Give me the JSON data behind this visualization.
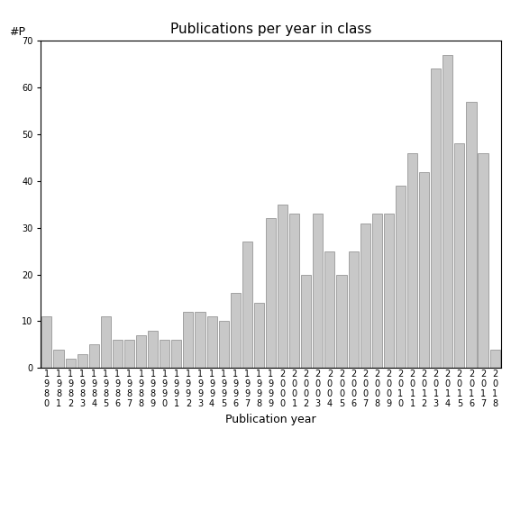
{
  "title": "Publications per year in class",
  "xlabel": "Publication year",
  "ylabel": "#P",
  "ylim": [
    0,
    70
  ],
  "yticks": [
    0,
    10,
    20,
    30,
    40,
    50,
    60,
    70
  ],
  "years": [
    "1980",
    "1981",
    "1982",
    "1983",
    "1984",
    "1985",
    "1986",
    "1987",
    "1988",
    "1989",
    "1990",
    "1991",
    "1992",
    "1993",
    "1994",
    "1995",
    "1996",
    "1997",
    "1998",
    "1999",
    "2000",
    "2001",
    "2002",
    "2003",
    "2004",
    "2005",
    "2006",
    "2007",
    "2008",
    "2009",
    "2010",
    "2011",
    "2012",
    "2013",
    "2014",
    "2015",
    "2016",
    "2017",
    "2018"
  ],
  "values": [
    11,
    4,
    2,
    3,
    5,
    11,
    6,
    6,
    7,
    8,
    6,
    6,
    12,
    12,
    11,
    10,
    16,
    27,
    14,
    32,
    35,
    33,
    20,
    33,
    25,
    20,
    25,
    31,
    33,
    33,
    39,
    46,
    42,
    64,
    67,
    48,
    57,
    46,
    4
  ],
  "bar_color": "#c8c8c8",
  "bar_edgecolor": "#888888",
  "background_color": "#ffffff",
  "title_fontsize": 11,
  "axis_fontsize": 9,
  "tick_fontsize": 7
}
